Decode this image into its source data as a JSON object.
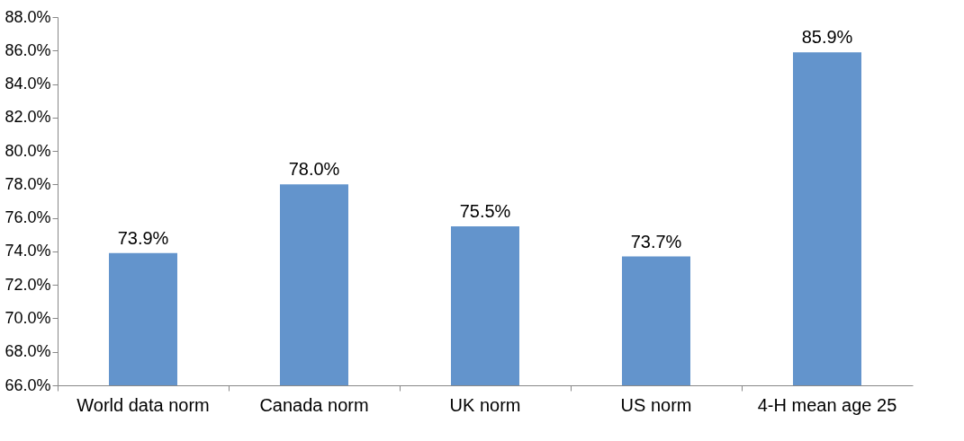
{
  "chart_data": {
    "type": "bar",
    "categories": [
      "World data norm",
      "Canada norm",
      "UK norm",
      "US norm",
      "4-H mean age 25"
    ],
    "values": [
      73.9,
      78.0,
      75.5,
      73.7,
      85.9
    ],
    "value_labels": [
      "73.9%",
      "78.0%",
      "75.5%",
      "73.7%",
      "85.9%"
    ],
    "color": "#6394cc",
    "ylim": [
      66,
      88
    ],
    "yticks": [
      {
        "value": 66,
        "label": "66.0%"
      },
      {
        "value": 68,
        "label": "68.0%"
      },
      {
        "value": 70,
        "label": "70.0%"
      },
      {
        "value": 72,
        "label": "72.0%"
      },
      {
        "value": 74,
        "label": "74.0%"
      },
      {
        "value": 76,
        "label": "76.0%"
      },
      {
        "value": 78,
        "label": "78.0%"
      },
      {
        "value": 80,
        "label": "80.0%"
      },
      {
        "value": 82,
        "label": "82.0%"
      },
      {
        "value": 84,
        "label": "84.0%"
      },
      {
        "value": 86,
        "label": "86.0%"
      },
      {
        "value": 88,
        "label": "88.0%"
      }
    ],
    "grid": false
  }
}
